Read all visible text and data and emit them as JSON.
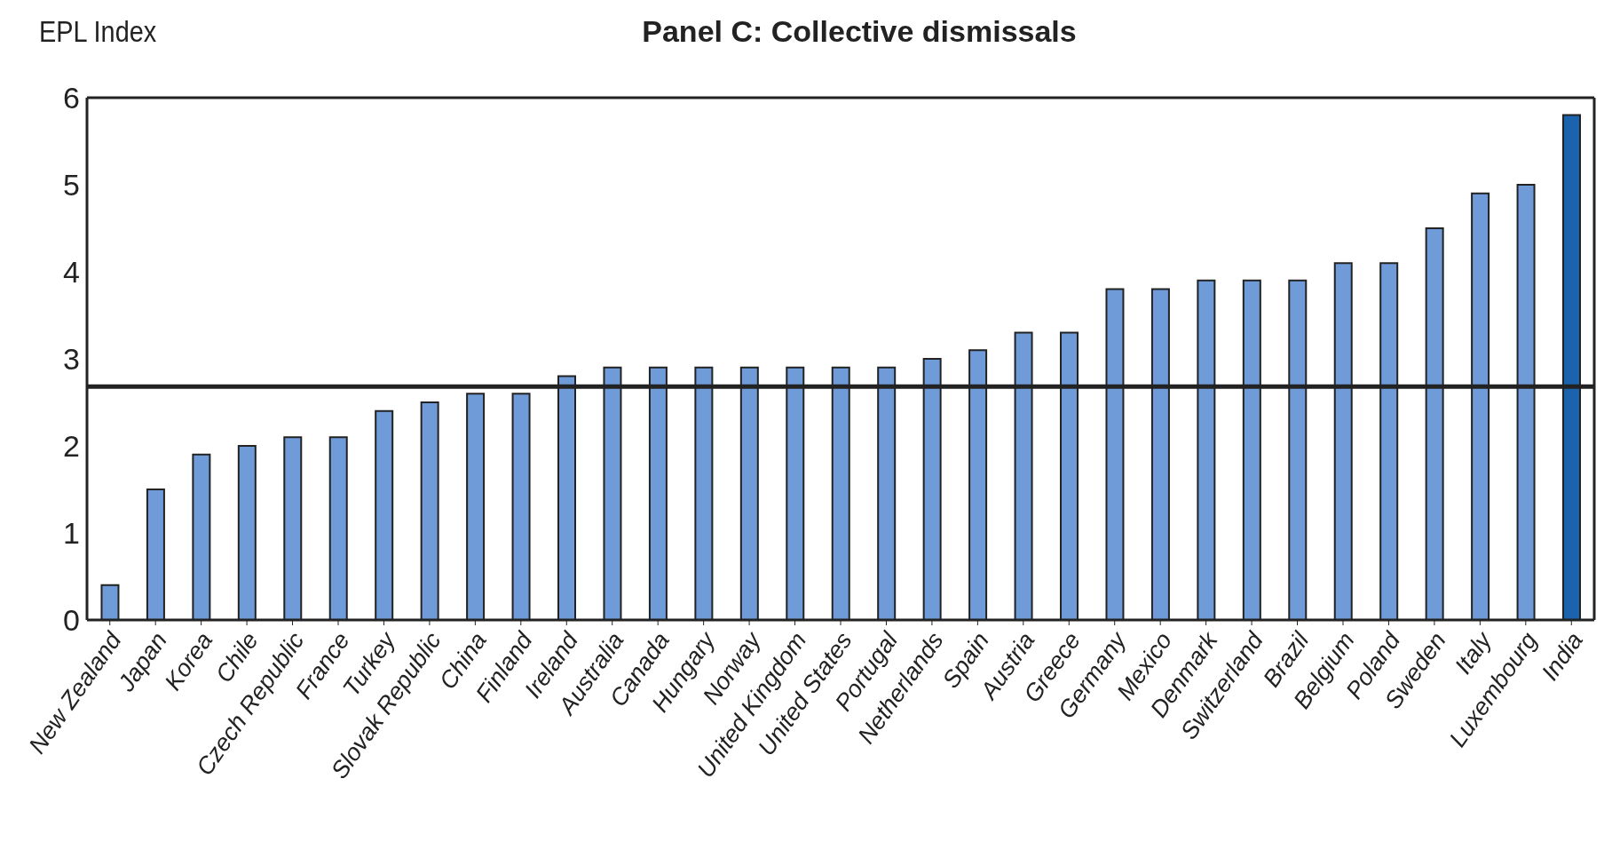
{
  "chart_data": {
    "type": "bar",
    "title": "Panel C: Collective dismissals",
    "ylabel": "EPL Index",
    "categories": [
      "New Zealand",
      "Japan",
      "Korea",
      "Chile",
      "Czech Republic",
      "France",
      "Turkey",
      "Slovak Republic",
      "China",
      "Finland",
      "Ireland",
      "Australia",
      "Canada",
      "Hungary",
      "Norway",
      "United Kingdom",
      "United States",
      "Portugal",
      "Netherlands",
      "Spain",
      "Austria",
      "Greece",
      "Germany",
      "Mexico",
      "Denmark",
      "Switzerland",
      "Brazil",
      "Belgium",
      "Poland",
      "Sweden",
      "Italy",
      "Luxembourg",
      "India"
    ],
    "values": [
      0.4,
      1.5,
      1.9,
      2,
      2.1,
      2.1,
      2.4,
      2.5,
      2.6,
      2.6,
      2.8,
      2.9,
      2.9,
      2.9,
      2.9,
      2.9,
      2.9,
      2.9,
      3,
      3.1,
      3.3,
      3.3,
      3.8,
      3.8,
      3.9,
      3.9,
      3.9,
      4.1,
      4.1,
      4.5,
      4.9,
      5,
      5.8
    ],
    "colors": [
      "#6f9bd8",
      "#6f9bd8",
      "#6f9bd8",
      "#6f9bd8",
      "#6f9bd8",
      "#6f9bd8",
      "#6f9bd8",
      "#6f9bd8",
      "#6f9bd8",
      "#6f9bd8",
      "#6f9bd8",
      "#6f9bd8",
      "#6f9bd8",
      "#6f9bd8",
      "#6f9bd8",
      "#6f9bd8",
      "#6f9bd8",
      "#6f9bd8",
      "#6f9bd8",
      "#6f9bd8",
      "#6f9bd8",
      "#6f9bd8",
      "#6f9bd8",
      "#6f9bd8",
      "#6f9bd8",
      "#6f9bd8",
      "#6f9bd8",
      "#6f9bd8",
      "#6f9bd8",
      "#6f9bd8",
      "#6f9bd8",
      "#6f9bd8",
      "#1b64ad"
    ],
    "ylim": [
      0,
      6
    ],
    "yticks": [
      0,
      1,
      2,
      3,
      4,
      5,
      6
    ],
    "ref_lines": [
      {
        "axis": "y",
        "value": 2.68,
        "color": "#222222"
      }
    ]
  }
}
